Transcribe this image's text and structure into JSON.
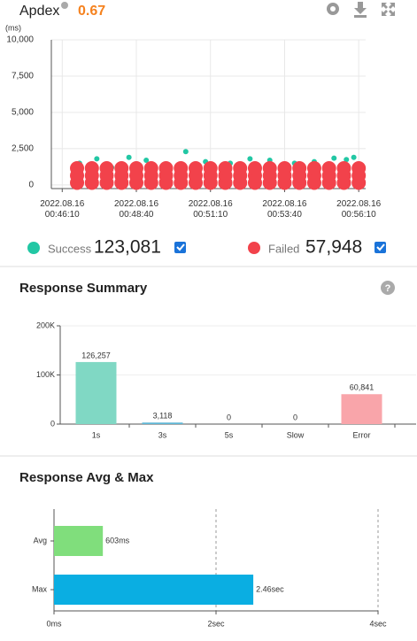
{
  "header": {
    "title": "Apdex",
    "score": "0.67"
  },
  "chart_data": [
    {
      "type": "scatter",
      "ylabel": "(ms)",
      "ylim": [
        -250,
        10000
      ],
      "yticks": [
        0,
        {
          "value": 2500,
          "label": "2,500"
        },
        {
          "value": 5000,
          "label": "5,000"
        },
        {
          "value": 7500,
          "label": "7,500"
        },
        {
          "value": 10000,
          "label": "10,000"
        }
      ],
      "xlim": [
        2748,
        3384
      ],
      "xticks": [
        {
          "value": 2770,
          "label": "2022.08.16\n00:46:10"
        },
        {
          "value": 2920,
          "label": "2022.08.16\n00:48:40"
        },
        {
          "value": 3070,
          "label": "2022.08.16\n00:51:10"
        },
        {
          "value": 3220,
          "label": "2022.08.16\n00:53:40"
        },
        {
          "value": 3370,
          "label": "2022.08.16\n00:56:10"
        }
      ],
      "grid": true,
      "series": [
        {
          "name": "Success",
          "total": "123,081",
          "color": "#22c7a4",
          "x": [
            2805,
            2840,
            2870,
            2905,
            2940,
            2985,
            3020,
            3060,
            3110,
            3150,
            3190,
            3240,
            3280,
            3320,
            3345,
            3360
          ],
          "values": [
            1500,
            1800,
            1200,
            1900,
            1700,
            1400,
            2300,
            1600,
            1500,
            1800,
            1700,
            1500,
            1600,
            1850,
            1750,
            1900
          ]
        },
        {
          "name": "Failed",
          "total": "57,948",
          "color": "#f2424b",
          "x": [
            2800,
            2830,
            2860,
            2890,
            2920,
            2950,
            2980,
            3010,
            3040,
            3070,
            3100,
            3130,
            3160,
            3190,
            3220,
            3250,
            3280,
            3310,
            3340,
            3370,
            2800,
            2830,
            2860,
            2890,
            2920,
            2950,
            2980,
            3010,
            3040,
            3070,
            3100,
            3130,
            3160,
            3190,
            3220,
            3250,
            3280,
            3310,
            3340,
            3370,
            2800,
            2830,
            2860,
            2890,
            2920,
            2950,
            2980,
            3010,
            3040,
            3070,
            3100,
            3130,
            3160,
            3190,
            3220,
            3250,
            3280,
            3310,
            3340,
            3370
          ],
          "values": [
            150,
            150,
            150,
            150,
            150,
            150,
            150,
            150,
            150,
            150,
            150,
            150,
            150,
            150,
            150,
            150,
            150,
            150,
            150,
            150,
            650,
            650,
            650,
            650,
            650,
            650,
            650,
            650,
            650,
            650,
            650,
            650,
            650,
            650,
            650,
            650,
            650,
            650,
            650,
            650,
            1150,
            1150,
            1150,
            1150,
            1150,
            1150,
            1150,
            1150,
            1150,
            1150,
            1150,
            1150,
            1150,
            1150,
            1150,
            1150,
            1150,
            1150,
            1150,
            1150
          ]
        }
      ]
    },
    {
      "type": "bar",
      "title": "Response Summary",
      "categories": [
        "1s",
        "3s",
        "5s",
        "Slow",
        "Error"
      ],
      "values": [
        126257,
        3118,
        0,
        0,
        60841
      ],
      "value_labels": [
        "126,257",
        "3,118",
        "0",
        "0",
        "60,841"
      ],
      "colors": [
        "#80d8c4",
        "#5fb7d6",
        "#80d8c4",
        "#80d8c4",
        "#f9a5aa"
      ],
      "ylim": [
        0,
        200000
      ],
      "yticks": [
        0,
        {
          "value": 100000,
          "label": "100K"
        },
        {
          "value": 200000,
          "label": "200K"
        }
      ],
      "grid": true
    },
    {
      "type": "hbar",
      "title": "Response Avg & Max",
      "categories": [
        "Avg",
        "Max"
      ],
      "values": [
        0.603,
        2.46
      ],
      "value_labels": [
        "603ms",
        "2.46sec"
      ],
      "colors": [
        "#80de7c",
        "#0aaee2"
      ],
      "xlim": [
        0,
        4
      ],
      "xticks": [
        {
          "value": 0,
          "label": "0ms"
        },
        {
          "value": 2,
          "label": "2sec"
        },
        {
          "value": 4,
          "label": "4sec"
        }
      ],
      "grid": true
    }
  ]
}
